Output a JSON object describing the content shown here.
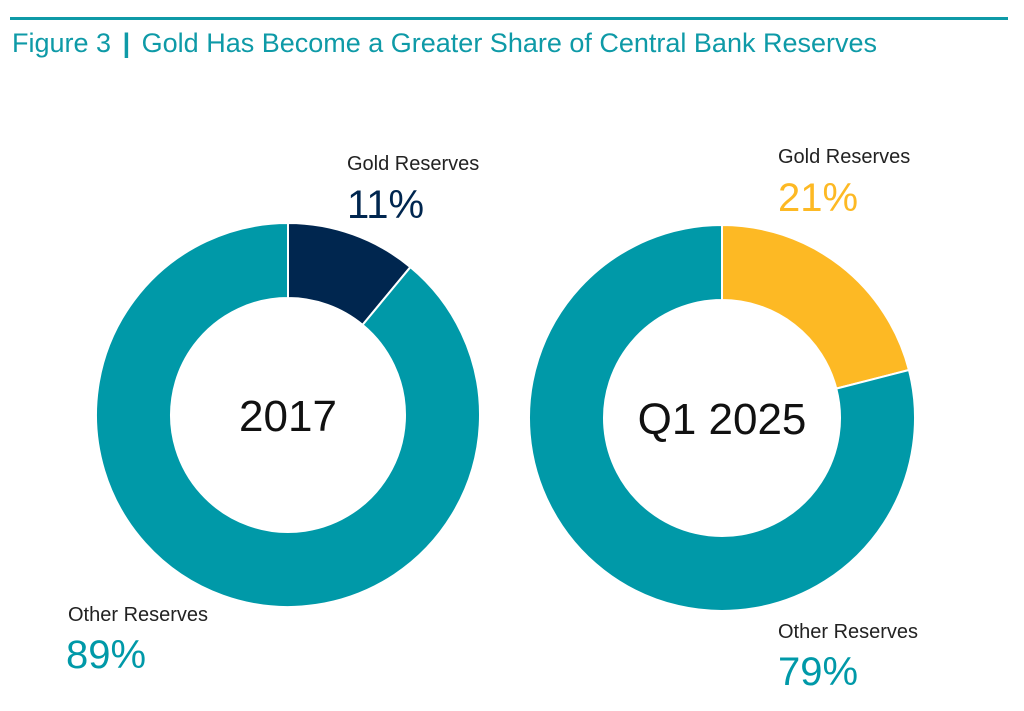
{
  "title": {
    "figure": "Figure 3",
    "separator": "|",
    "text": "Gold Has Become a Greater Share of Central Bank Reserves"
  },
  "colors": {
    "title": "#0e9aa7",
    "other": "#0099a8",
    "gold_2017": "#00264f",
    "gold_2025": "#fdb924"
  },
  "chart_data": [
    {
      "type": "pie",
      "donut": true,
      "center_label": "2017",
      "slices": [
        {
          "name": "Gold Reserves",
          "value": 11,
          "label": "11%",
          "color": "#00264f"
        },
        {
          "name": "Other Reserves",
          "value": 89,
          "label": "89%",
          "color": "#0099a8"
        }
      ]
    },
    {
      "type": "pie",
      "donut": true,
      "center_label": "Q1 2025",
      "slices": [
        {
          "name": "Gold Reserves",
          "value": 21,
          "label": "21%",
          "color": "#fdb924"
        },
        {
          "name": "Other Reserves",
          "value": 79,
          "label": "79%",
          "color": "#0099a8"
        }
      ]
    }
  ]
}
